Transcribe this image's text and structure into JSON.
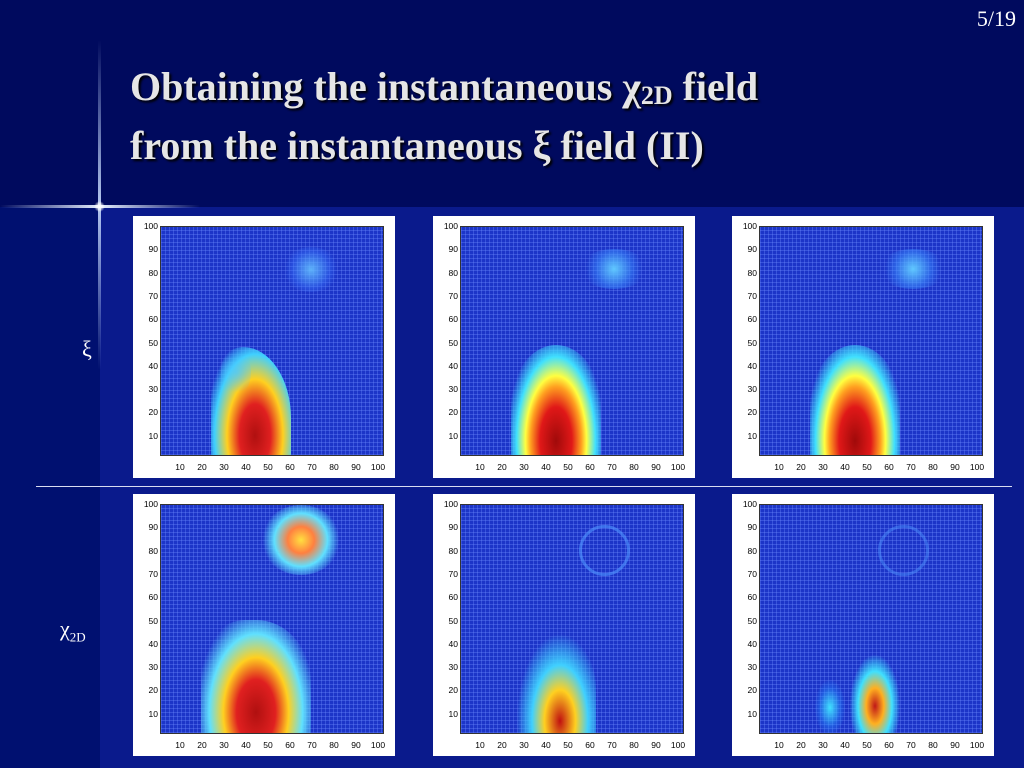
{
  "slide": {
    "number": "5/19",
    "title_line1_pre": "Obtaining the instantaneous χ",
    "title_sub": "2D",
    "title_line1_post": " field",
    "title_line2": "from the instantaneous ξ field (II)"
  },
  "rows": [
    {
      "label": "ξ",
      "label_sub": ""
    },
    {
      "label": "χ",
      "label_sub": "2D"
    }
  ],
  "axes": {
    "y_ticks": [
      "100",
      "90",
      "80",
      "70",
      "60",
      "50",
      "40",
      "30",
      "20",
      "10"
    ],
    "x_ticks": [
      "10",
      "20",
      "30",
      "40",
      "50",
      "60",
      "70",
      "80",
      "90",
      "100"
    ]
  },
  "colors": {
    "background": "#0a1a8c",
    "header_band": "#000a5e",
    "field_low": "#1c35c8",
    "field_high": "#b01010"
  }
}
